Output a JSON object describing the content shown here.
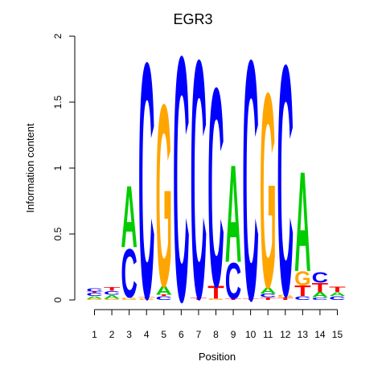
{
  "chart_data": {
    "type": "sequence-logo",
    "title": "EGR3",
    "xlabel": "Position",
    "ylabel": "Information content",
    "ylim": [
      0,
      2
    ],
    "y_ticks": [
      "0",
      "0.5",
      "1",
      "1.5",
      "2"
    ],
    "x_ticks": [
      "1",
      "2",
      "3",
      "4",
      "5",
      "6",
      "7",
      "8",
      "9",
      "10",
      "11",
      "12",
      "13",
      "14",
      "15"
    ],
    "colors": {
      "A": "#00cc00",
      "C": "#0000ff",
      "G": "#ffa500",
      "T": "#ff0000"
    },
    "positions": [
      {
        "pos": "1",
        "stack": [
          [
            "G",
            0.01
          ],
          [
            "A",
            0.02
          ],
          [
            "C",
            0.025
          ],
          [
            "T",
            0.01
          ],
          [
            "C",
            0.025
          ]
        ]
      },
      {
        "pos": "2",
        "stack": [
          [
            "G",
            0.01
          ],
          [
            "A",
            0.03
          ],
          [
            "C",
            0.03
          ],
          [
            "T",
            0.03
          ]
        ]
      },
      {
        "pos": "3",
        "stack": [
          [
            "G",
            0.02
          ],
          [
            "C",
            0.38
          ],
          [
            "A",
            0.48
          ]
        ]
      },
      {
        "pos": "4",
        "stack": [
          [
            "G",
            0.01
          ],
          [
            "T",
            0.01
          ],
          [
            "C",
            1.84
          ]
        ]
      },
      {
        "pos": "5",
        "stack": [
          [
            "C",
            0.03
          ],
          [
            "T",
            0.01
          ],
          [
            "A",
            0.07
          ],
          [
            "G",
            1.42
          ]
        ]
      },
      {
        "pos": "6",
        "stack": [
          [
            "C",
            1.91
          ]
        ]
      },
      {
        "pos": "7",
        "stack": [
          [
            "T",
            0.02
          ],
          [
            "C",
            1.86
          ]
        ]
      },
      {
        "pos": "8",
        "stack": [
          [
            "G",
            0.01
          ],
          [
            "T",
            0.1
          ],
          [
            "C",
            1.55
          ]
        ]
      },
      {
        "pos": "9",
        "stack": [
          [
            "T",
            0.01
          ],
          [
            "C",
            0.28
          ],
          [
            "A",
            0.76
          ]
        ]
      },
      {
        "pos": "10",
        "stack": [
          [
            "T",
            0.01
          ],
          [
            "C",
            1.87
          ]
        ]
      },
      {
        "pos": "11",
        "stack": [
          [
            "T",
            0.02
          ],
          [
            "C",
            0.03
          ],
          [
            "A",
            0.05
          ],
          [
            "G",
            1.52
          ]
        ]
      },
      {
        "pos": "12",
        "stack": [
          [
            "T",
            0.02
          ],
          [
            "G",
            0.02
          ],
          [
            "C",
            1.8
          ]
        ]
      },
      {
        "pos": "13",
        "stack": [
          [
            "C",
            0.03
          ],
          [
            "T",
            0.08
          ],
          [
            "G",
            0.11
          ],
          [
            "A",
            0.78
          ]
        ]
      },
      {
        "pos": "14",
        "stack": [
          [
            "C",
            0.02
          ],
          [
            "A",
            0.04
          ],
          [
            "T",
            0.07
          ],
          [
            "C",
            0.08
          ]
        ]
      },
      {
        "pos": "15",
        "stack": [
          [
            "C",
            0.03
          ],
          [
            "A",
            0.03
          ],
          [
            "T",
            0.04
          ]
        ]
      }
    ]
  }
}
